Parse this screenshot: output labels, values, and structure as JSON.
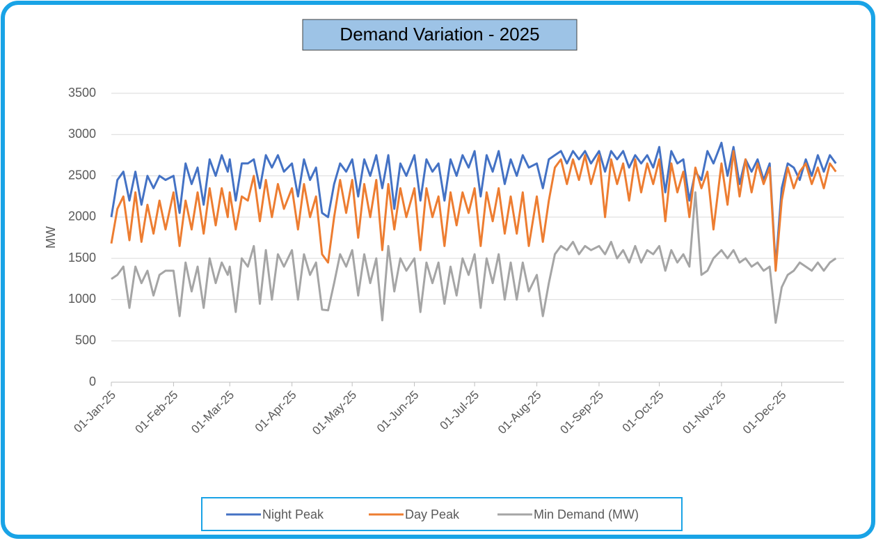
{
  "chart_data": {
    "type": "line",
    "title": "Demand Variation - 2025",
    "ylabel": "MW",
    "x": [
      "01-Jan-25",
      "04-Jan-25",
      "07-Jan-25",
      "10-Jan-25",
      "13-Jan-25",
      "16-Jan-25",
      "19-Jan-25",
      "22-Jan-25",
      "25-Jan-25",
      "28-Jan-25",
      "01-Feb-25",
      "04-Feb-25",
      "07-Feb-25",
      "10-Feb-25",
      "13-Feb-25",
      "16-Feb-25",
      "19-Feb-25",
      "22-Feb-25",
      "25-Feb-25",
      "28-Feb-25",
      "01-Mar-25",
      "04-Mar-25",
      "07-Mar-25",
      "10-Mar-25",
      "13-Mar-25",
      "16-Mar-25",
      "19-Mar-25",
      "22-Mar-25",
      "25-Mar-25",
      "28-Mar-25",
      "01-Apr-25",
      "04-Apr-25",
      "07-Apr-25",
      "10-Apr-25",
      "13-Apr-25",
      "16-Apr-25",
      "19-Apr-25",
      "22-Apr-25",
      "25-Apr-25",
      "28-Apr-25",
      "01-May-25",
      "04-May-25",
      "07-May-25",
      "10-May-25",
      "13-May-25",
      "16-May-25",
      "19-May-25",
      "22-May-25",
      "25-May-25",
      "28-May-25",
      "01-Jun-25",
      "04-Jun-25",
      "07-Jun-25",
      "10-Jun-25",
      "13-Jun-25",
      "16-Jun-25",
      "19-Jun-25",
      "22-Jun-25",
      "25-Jun-25",
      "28-Jun-25",
      "01-Jul-25",
      "04-Jul-25",
      "07-Jul-25",
      "10-Jul-25",
      "13-Jul-25",
      "16-Jul-25",
      "19-Jul-25",
      "22-Jul-25",
      "25-Jul-25",
      "28-Jul-25",
      "01-Aug-25",
      "04-Aug-25",
      "07-Aug-25",
      "10-Aug-25",
      "13-Aug-25",
      "16-Aug-25",
      "19-Aug-25",
      "22-Aug-25",
      "25-Aug-25",
      "28-Aug-25",
      "01-Sep-25",
      "04-Sep-25",
      "07-Sep-25",
      "10-Sep-25",
      "13-Sep-25",
      "16-Sep-25",
      "19-Sep-25",
      "22-Sep-25",
      "25-Sep-25",
      "28-Sep-25",
      "01-Oct-25",
      "04-Oct-25",
      "07-Oct-25",
      "10-Oct-25",
      "13-Oct-25",
      "16-Oct-25",
      "19-Oct-25",
      "22-Oct-25",
      "25-Oct-25",
      "28-Oct-25",
      "01-Nov-25",
      "04-Nov-25",
      "07-Nov-25",
      "10-Nov-25",
      "13-Nov-25",
      "16-Nov-25",
      "19-Nov-25",
      "22-Nov-25",
      "25-Nov-25",
      "28-Nov-25",
      "01-Dec-25",
      "04-Dec-25",
      "07-Dec-25",
      "10-Dec-25",
      "13-Dec-25",
      "16-Dec-25",
      "19-Dec-25",
      "22-Dec-25",
      "25-Dec-25",
      "28-Dec-25"
    ],
    "series": [
      {
        "name": "Night Peak",
        "color": "#4472c4",
        "values": [
          2000,
          2450,
          2550,
          2200,
          2550,
          2150,
          2500,
          2350,
          2500,
          2450,
          2500,
          2050,
          2650,
          2400,
          2600,
          2150,
          2700,
          2500,
          2750,
          2550,
          2700,
          2200,
          2650,
          2650,
          2700,
          2350,
          2750,
          2600,
          2750,
          2550,
          2650,
          2250,
          2700,
          2450,
          2600,
          2050,
          2000,
          2400,
          2650,
          2550,
          2700,
          2250,
          2700,
          2500,
          2750,
          2350,
          2750,
          2100,
          2650,
          2500,
          2750,
          2200,
          2700,
          2550,
          2650,
          2200,
          2700,
          2500,
          2750,
          2600,
          2800,
          2250,
          2750,
          2550,
          2800,
          2400,
          2700,
          2500,
          2750,
          2600,
          2650,
          2350,
          2700,
          2750,
          2800,
          2650,
          2800,
          2700,
          2800,
          2650,
          2800,
          2550,
          2800,
          2700,
          2800,
          2600,
          2750,
          2650,
          2750,
          2600,
          2850,
          2300,
          2800,
          2650,
          2700,
          2200,
          2550,
          2450,
          2800,
          2650,
          2900,
          2500,
          2850,
          2400,
          2700,
          2550,
          2700,
          2450,
          2650,
          1400,
          2350,
          2650,
          2600,
          2450,
          2700,
          2500,
          2750,
          2550,
          2750,
          2650
        ]
      },
      {
        "name": "Day Peak",
        "color": "#ed7d31",
        "values": [
          1680,
          2100,
          2250,
          1720,
          2300,
          1700,
          2150,
          1800,
          2200,
          1850,
          2300,
          1650,
          2200,
          1850,
          2300,
          1800,
          2350,
          1900,
          2350,
          2000,
          2300,
          1850,
          2250,
          2200,
          2500,
          1950,
          2450,
          2000,
          2400,
          2100,
          2350,
          1850,
          2400,
          2000,
          2250,
          1550,
          1450,
          2000,
          2450,
          2050,
          2450,
          1750,
          2400,
          2000,
          2450,
          1600,
          2400,
          1850,
          2350,
          2000,
          2350,
          1600,
          2350,
          2000,
          2250,
          1650,
          2300,
          1900,
          2300,
          2050,
          2350,
          1650,
          2300,
          1950,
          2350,
          1800,
          2250,
          1800,
          2300,
          1650,
          2250,
          1700,
          2200,
          2600,
          2700,
          2400,
          2700,
          2450,
          2750,
          2400,
          2750,
          2000,
          2700,
          2400,
          2650,
          2200,
          2700,
          2300,
          2650,
          2400,
          2700,
          1950,
          2650,
          2300,
          2550,
          2000,
          2600,
          2350,
          2550,
          1850,
          2650,
          2150,
          2800,
          2250,
          2700,
          2300,
          2650,
          2400,
          2600,
          1350,
          2200,
          2600,
          2350,
          2550,
          2650,
          2400,
          2600,
          2350,
          2650,
          2550
        ]
      },
      {
        "name": "Min Demand (MW)",
        "color": "#a5a5a5",
        "values": [
          1250,
          1300,
          1400,
          900,
          1400,
          1200,
          1350,
          1050,
          1300,
          1350,
          1350,
          800,
          1450,
          1100,
          1400,
          900,
          1500,
          1200,
          1450,
          1300,
          1400,
          850,
          1500,
          1400,
          1650,
          950,
          1600,
          1000,
          1550,
          1400,
          1600,
          1000,
          1550,
          1300,
          1450,
          880,
          870,
          1200,
          1550,
          1400,
          1600,
          1050,
          1550,
          1200,
          1500,
          750,
          1650,
          1100,
          1500,
          1350,
          1500,
          850,
          1450,
          1200,
          1450,
          950,
          1400,
          1050,
          1500,
          1300,
          1550,
          900,
          1500,
          1200,
          1550,
          1000,
          1450,
          1000,
          1450,
          1100,
          1300,
          800,
          1200,
          1550,
          1650,
          1600,
          1700,
          1550,
          1650,
          1600,
          1650,
          1550,
          1700,
          1500,
          1600,
          1450,
          1650,
          1450,
          1600,
          1550,
          1650,
          1350,
          1600,
          1450,
          1550,
          1400,
          2300,
          1300,
          1350,
          1500,
          1600,
          1500,
          1600,
          1450,
          1500,
          1400,
          1450,
          1350,
          1400,
          720,
          1150,
          1300,
          1350,
          1450,
          1400,
          1350,
          1450,
          1350,
          1450,
          1500
        ]
      }
    ],
    "xlim": [
      "01-Jan-25",
      "31-Dec-25"
    ],
    "xticks": [
      "01-Jan-25",
      "01-Feb-25",
      "01-Mar-25",
      "01-Apr-25",
      "01-May-25",
      "01-Jun-25",
      "01-Jul-25",
      "01-Aug-25",
      "01-Sep-25",
      "01-Oct-25",
      "01-Nov-25",
      "01-Dec-25"
    ],
    "ylim": [
      0,
      3500
    ],
    "yticks": [
      0,
      500,
      1000,
      1500,
      2000,
      2500,
      3000,
      3500
    ],
    "grid": true,
    "legend": "bottom"
  }
}
